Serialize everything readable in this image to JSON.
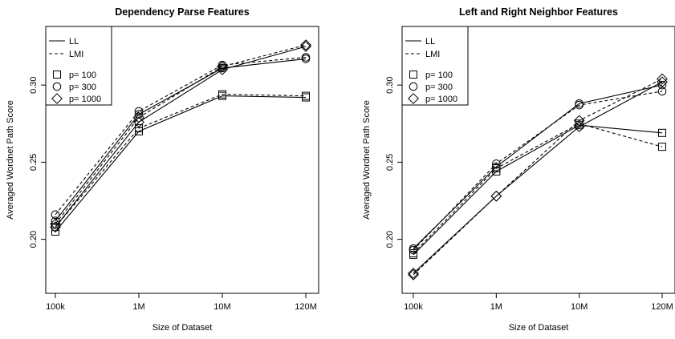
{
  "colors": {
    "line": "#000000",
    "background": "#ffffff"
  },
  "chart_data": [
    {
      "type": "line",
      "title": "Dependency Parse Features",
      "xlabel": "Size of Dataset",
      "ylabel": "Averaged Wordnet Path Score",
      "categories": [
        "100k",
        "1M",
        "10M",
        "120M"
      ],
      "yticks": [
        "0.20",
        "0.25",
        "0.30"
      ],
      "ylim": [
        0.165,
        0.338
      ],
      "legend": {
        "position": "top-left",
        "lines": [
          {
            "label": "LL",
            "style": "solid"
          },
          {
            "label": "LMI",
            "style": "dashed"
          }
        ],
        "markers": [
          {
            "label": "p= 100",
            "marker": "square"
          },
          {
            "label": "p= 300",
            "marker": "circle"
          },
          {
            "label": "p= 1000",
            "marker": "diamond"
          }
        ]
      },
      "series": [
        {
          "measure": "LL",
          "p": 100,
          "style": "solid",
          "marker": "square",
          "values": [
            0.205,
            0.27,
            0.293,
            0.292
          ]
        },
        {
          "measure": "LMI",
          "p": 100,
          "style": "dashed",
          "marker": "square",
          "values": [
            0.208,
            0.272,
            0.294,
            0.293
          ]
        },
        {
          "measure": "LL",
          "p": 300,
          "style": "solid",
          "marker": "circle",
          "values": [
            0.212,
            0.281,
            0.311,
            0.317
          ]
        },
        {
          "measure": "LMI",
          "p": 300,
          "style": "dashed",
          "marker": "circle",
          "values": [
            0.216,
            0.283,
            0.313,
            0.318
          ]
        },
        {
          "measure": "LL",
          "p": 1000,
          "style": "solid",
          "marker": "diamond",
          "values": [
            0.208,
            0.276,
            0.31,
            0.325
          ]
        },
        {
          "measure": "LMI",
          "p": 1000,
          "style": "dashed",
          "marker": "diamond",
          "values": [
            0.21,
            0.279,
            0.312,
            0.326
          ]
        }
      ]
    },
    {
      "type": "line",
      "title": "Left and Right Neighbor Features",
      "xlabel": "Size of Dataset",
      "ylabel": "Averaged Wordnet Path Score",
      "categories": [
        "100k",
        "1M",
        "10M",
        "120M"
      ],
      "yticks": [
        "0.20",
        "0.25",
        "0.30"
      ],
      "ylim": [
        0.165,
        0.338
      ],
      "legend": {
        "position": "top-left",
        "lines": [
          {
            "label": "LL",
            "style": "solid"
          },
          {
            "label": "LMI",
            "style": "dashed"
          }
        ],
        "markers": [
          {
            "label": "p= 100",
            "marker": "square"
          },
          {
            "label": "p= 300",
            "marker": "circle"
          },
          {
            "label": "p= 1000",
            "marker": "diamond"
          }
        ]
      },
      "series": [
        {
          "measure": "LL",
          "p": 100,
          "style": "solid",
          "marker": "square",
          "values": [
            0.19,
            0.244,
            0.274,
            0.269
          ]
        },
        {
          "measure": "LMI",
          "p": 100,
          "style": "dashed",
          "marker": "square",
          "values": [
            0.191,
            0.246,
            0.275,
            0.26
          ]
        },
        {
          "measure": "LL",
          "p": 300,
          "style": "solid",
          "marker": "circle",
          "values": [
            0.194,
            0.247,
            0.288,
            0.3
          ]
        },
        {
          "measure": "LMI",
          "p": 300,
          "style": "dashed",
          "marker": "circle",
          "values": [
            0.193,
            0.249,
            0.287,
            0.296
          ]
        },
        {
          "measure": "LL",
          "p": 1000,
          "style": "solid",
          "marker": "diamond",
          "values": [
            0.178,
            0.228,
            0.273,
            0.302
          ]
        },
        {
          "measure": "LMI",
          "p": 1000,
          "style": "dashed",
          "marker": "diamond",
          "values": [
            0.177,
            0.228,
            0.277,
            0.304
          ]
        }
      ]
    }
  ]
}
